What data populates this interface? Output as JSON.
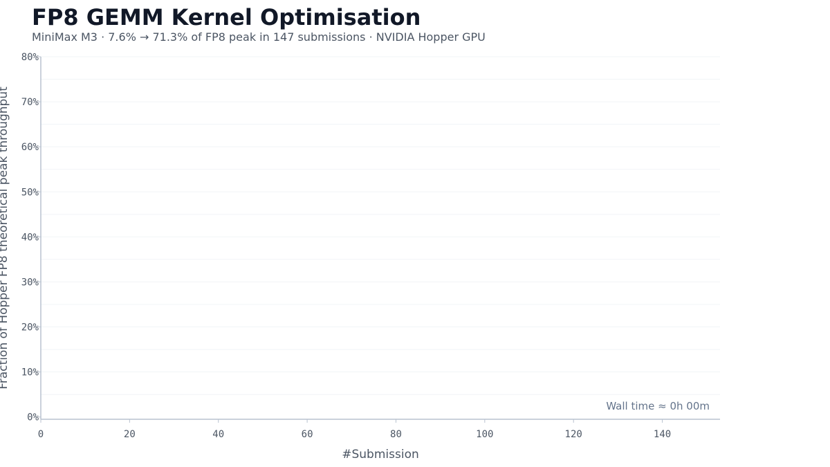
{
  "title": "FP8 GEMM Kernel Optimisation",
  "subtitle": "MiniMax M3  ·  7.6% → 71.3% of FP8 peak in 147 submissions  ·  NVIDIA Hopper GPU",
  "chart_data": {
    "type": "line",
    "xlabel": "#Submission",
    "ylabel": "Fraction of Hopper FP8 theoretical peak throughput",
    "xlim": [
      0,
      153
    ],
    "ylim": [
      -0.5,
      80
    ],
    "x_ticks": [
      0,
      20,
      40,
      60,
      80,
      100,
      120,
      140
    ],
    "y_ticks": [
      0,
      10,
      20,
      30,
      40,
      50,
      60,
      70,
      80
    ],
    "y_tick_labels": [
      "0%",
      "10%",
      "20%",
      "30%",
      "40%",
      "50%",
      "60%",
      "70%",
      "80%"
    ],
    "grid": true,
    "series": [],
    "annotation": "Wall time ≈ 0h 00m"
  },
  "colors": {
    "grid": "#f1f4f7",
    "axis": "#b8c2cf",
    "text": "#4b5563",
    "title": "#111827"
  }
}
